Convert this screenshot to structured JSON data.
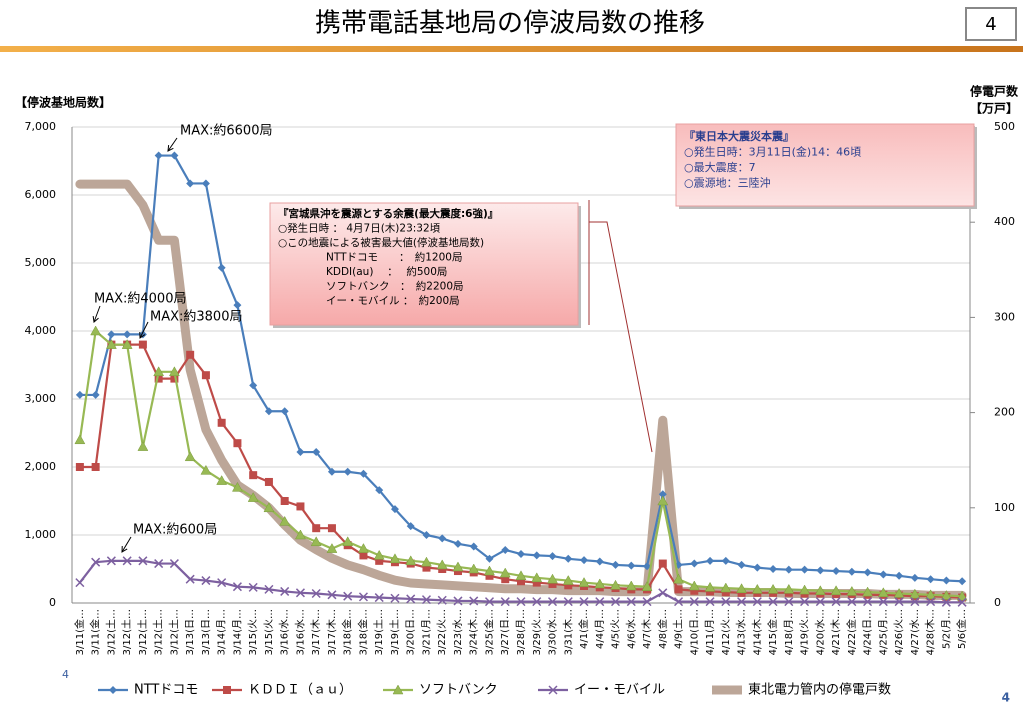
{
  "page": {
    "title": "携帯電話基地局の停波局数の推移",
    "page_number": "4",
    "footer_left": "4",
    "footer_right": "4"
  },
  "chart_data": {
    "type": "line",
    "ylabel": "【停波基地局数】",
    "y2label": [
      "停電戸数",
      "【万戸】"
    ],
    "categories": [
      "3/11(金…",
      "3/11(金…",
      "3/12(土…",
      "3/12(土…",
      "3/12(土…",
      "3/12(土…",
      "3/12(土…",
      "3/13(日…",
      "3/13(日…",
      "3/14(月…",
      "3/14(月…",
      "3/15(火…",
      "3/15(火…",
      "3/16(水…",
      "3/16(水…",
      "3/17(木…",
      "3/17(木…",
      "3/18(金…",
      "3/18(金…",
      "3/19(土…",
      "3/19(土…",
      "3/20(日…",
      "3/21(月…",
      "3/22(火…",
      "3/23(水…",
      "3/24(木…",
      "3/25(金…",
      "3/27(日…",
      "3/28(月…",
      "3/29(火…",
      "3/30(水…",
      "3/31(木…",
      "4/1(金…",
      "4/4(月…",
      "4/5(火…",
      "4/6(水…",
      "4/7(木…",
      "4/8(金…",
      "4/9(土…",
      "4/10(日…",
      "4/11(月…",
      "4/12(火…",
      "4/13(水…",
      "4/14(木…",
      "4/15(金…",
      "4/18(月…",
      "4/19(火…",
      "4/20(水…",
      "4/21(木…",
      "4/22(金…",
      "4/24(日…",
      "4/25(月…",
      "4/26(火…",
      "4/27(水…",
      "4/28(木…",
      "5/2(月…",
      "5/6(金…"
    ],
    "series": [
      {
        "name": "東北電力管内の停電戸数",
        "color": "#bca698",
        "marker": "none",
        "axis": "y2",
        "values": [
          440,
          440,
          440,
          440,
          418,
          381,
          381,
          245,
          182,
          150,
          124,
          113,
          100,
          82,
          66,
          56,
          47,
          40,
          35,
          29,
          24,
          21,
          20,
          19,
          18,
          17,
          16,
          15,
          15,
          14,
          14,
          13,
          13,
          13,
          12,
          12,
          12,
          192,
          12,
          12,
          12,
          11,
          11,
          11,
          11,
          10,
          10,
          10,
          10,
          10,
          10,
          9,
          9,
          9,
          8,
          8,
          8
        ]
      },
      {
        "name": "NTTドコモ",
        "color": "#4a7ebb",
        "marker": "diamond",
        "values": [
          3060,
          3060,
          3950,
          3950,
          3950,
          6580,
          6580,
          6170,
          6170,
          4930,
          4380,
          3200,
          2820,
          2820,
          2220,
          2220,
          1930,
          1930,
          1900,
          1660,
          1380,
          1130,
          1000,
          950,
          870,
          830,
          650,
          780,
          720,
          700,
          690,
          650,
          630,
          610,
          560,
          550,
          540,
          1600,
          560,
          580,
          620,
          620,
          560,
          520,
          500,
          490,
          490,
          480,
          470,
          460,
          450,
          420,
          400,
          370,
          350,
          330,
          320
        ]
      },
      {
        "name": "ＫＤＤＩ（ａｕ）",
        "color": "#be4b48",
        "marker": "square",
        "values": [
          2000,
          2000,
          3800,
          3800,
          3800,
          3300,
          3300,
          3650,
          3350,
          2650,
          2350,
          1880,
          1780,
          1500,
          1420,
          1100,
          1100,
          850,
          700,
          620,
          600,
          580,
          520,
          500,
          470,
          450,
          400,
          350,
          320,
          300,
          280,
          260,
          250,
          230,
          220,
          200,
          200,
          580,
          200,
          180,
          170,
          160,
          150,
          150,
          150,
          150,
          140,
          140,
          130,
          130,
          120,
          120,
          110,
          100,
          100,
          90,
          80
        ]
      },
      {
        "name": "ソフトバンク",
        "color": "#98b954",
        "marker": "triangle",
        "values": [
          2400,
          4000,
          3800,
          3800,
          2300,
          3400,
          3400,
          2150,
          1950,
          1800,
          1700,
          1550,
          1400,
          1200,
          1000,
          900,
          800,
          900,
          800,
          700,
          650,
          620,
          600,
          560,
          530,
          500,
          470,
          440,
          400,
          370,
          350,
          330,
          300,
          280,
          260,
          250,
          240,
          1500,
          350,
          250,
          230,
          220,
          210,
          200,
          200,
          200,
          190,
          180,
          180,
          170,
          160,
          150,
          140,
          130,
          120,
          110,
          100
        ]
      },
      {
        "name": "イー・モバイル",
        "color": "#7d60a0",
        "marker": "x",
        "values": [
          300,
          600,
          620,
          620,
          620,
          580,
          580,
          350,
          330,
          300,
          240,
          230,
          200,
          170,
          150,
          140,
          120,
          100,
          90,
          80,
          70,
          60,
          50,
          40,
          30,
          30,
          20,
          20,
          20,
          20,
          20,
          20,
          20,
          20,
          20,
          20,
          20,
          150,
          20,
          20,
          20,
          20,
          20,
          20,
          20,
          20,
          20,
          20,
          20,
          20,
          20,
          20,
          20,
          20,
          20,
          10,
          10
        ]
      }
    ],
    "ylim": [
      0,
      7000
    ],
    "yticks": [
      0,
      {
        "value": 1000,
        "label": "1,000"
      },
      {
        "value": 2000,
        "label": "2,000"
      },
      {
        "value": 3000,
        "label": "3,000"
      },
      {
        "value": 4000,
        "label": "4,000"
      },
      {
        "value": 5000,
        "label": "5,000"
      },
      {
        "value": 6000,
        "label": "6,000"
      },
      {
        "value": 7000,
        "label": "7,000"
      }
    ],
    "y2lim": [
      0,
      500
    ],
    "y2ticks": [
      0,
      100,
      200,
      300,
      400,
      500
    ],
    "grid": true,
    "legend": "bottom",
    "annotations": [
      {
        "text": "MAX:約6600局"
      },
      {
        "text": "MAX:約4000局"
      },
      {
        "text": "MAX:約3800局"
      },
      {
        "text": "MAX:約600局"
      }
    ],
    "notes": [
      {
        "lines": [
          "『宮城県沖を震源とする余震(最大震度:6強)』",
          "○発生日時 ： 4月7日(木)23:32頃",
          "○この地震による被害最大値(停波基地局数)",
          "NTTドコモ　　：　約1200局",
          "KDDI(au)　 ：　 約500局",
          "ソフトバンク　：　約2200局",
          "イー・モバイル ：　約200局"
        ]
      },
      {
        "lines": [
          "『東日本大震災本震』",
          "○発生日時：3月11日(金)14：46頃",
          "○最大震度：7",
          "○震源地：三陸沖"
        ]
      }
    ]
  }
}
